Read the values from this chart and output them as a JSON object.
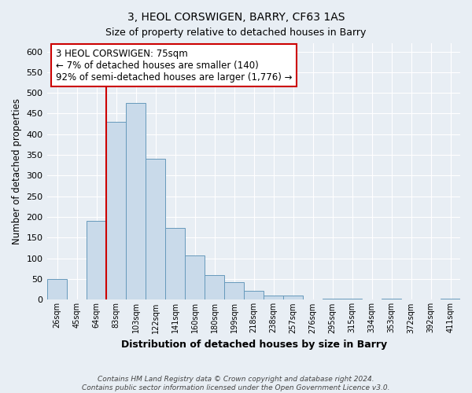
{
  "title": "3, HEOL CORSWIGEN, BARRY, CF63 1AS",
  "subtitle": "Size of property relative to detached houses in Barry",
  "xlabel": "Distribution of detached houses by size in Barry",
  "ylabel": "Number of detached properties",
  "bar_color": "#c9daea",
  "bar_edge_color": "#6699bb",
  "categories": [
    "26sqm",
    "45sqm",
    "64sqm",
    "83sqm",
    "103sqm",
    "122sqm",
    "141sqm",
    "160sqm",
    "180sqm",
    "199sqm",
    "218sqm",
    "238sqm",
    "257sqm",
    "276sqm",
    "295sqm",
    "315sqm",
    "334sqm",
    "353sqm",
    "372sqm",
    "392sqm",
    "411sqm"
  ],
  "values": [
    50,
    0,
    190,
    430,
    475,
    340,
    173,
    107,
    60,
    43,
    22,
    10,
    10,
    0,
    3,
    3,
    0,
    3,
    0,
    0,
    3
  ],
  "ylim": [
    0,
    620
  ],
  "yticks": [
    0,
    50,
    100,
    150,
    200,
    250,
    300,
    350,
    400,
    450,
    500,
    550,
    600
  ],
  "marker_color": "#cc0000",
  "annotation_title": "3 HEOL CORSWIGEN: 75sqm",
  "annotation_line1": "← 7% of detached houses are smaller (140)",
  "annotation_line2": "92% of semi-detached houses are larger (1,776) →",
  "annotation_box_color": "#ffffff",
  "annotation_box_edge": "#cc0000",
  "footer_line1": "Contains HM Land Registry data © Crown copyright and database right 2024.",
  "footer_line2": "Contains public sector information licensed under the Open Government Licence v3.0.",
  "background_color": "#e8eef4",
  "plot_bg_color": "#e8eef4",
  "grid_color": "#ffffff"
}
